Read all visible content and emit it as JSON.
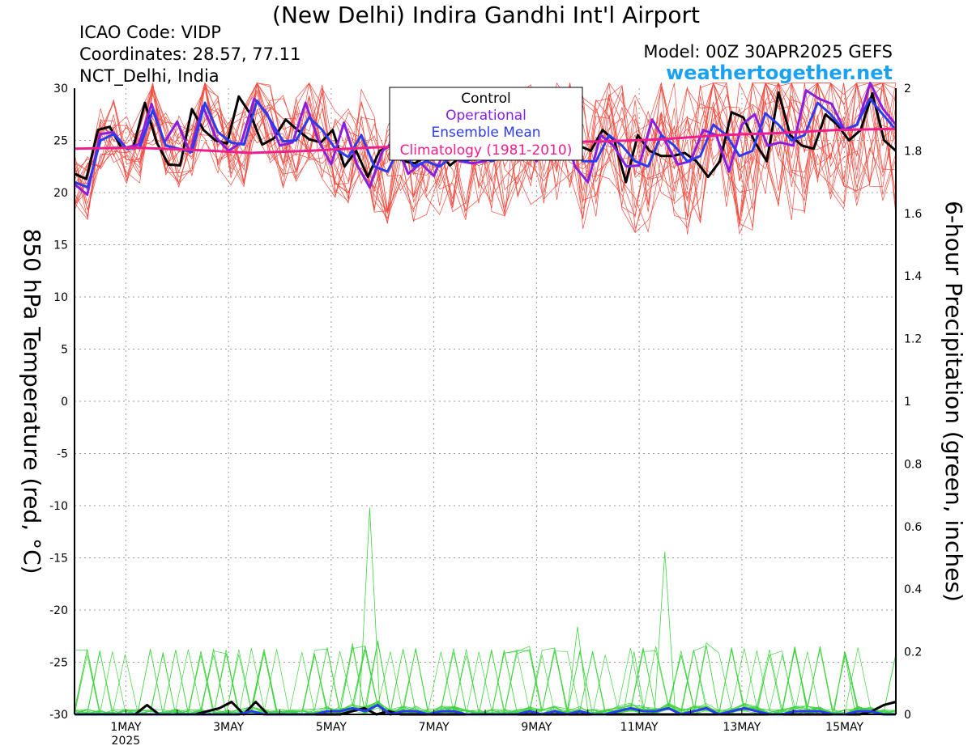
{
  "header": {
    "title": "(New Delhi) Indira Gandhi Int'l Airport",
    "icao": "ICAO Code: VIDP",
    "coordinates": "Coordinates: 28.57, 77.11",
    "region": "NCT_Delhi, India",
    "model": "Model: 00Z 30APR2025 GEFS",
    "site": "weathertogether.net"
  },
  "colors": {
    "control": "#000000",
    "operational": "#8a1ee0",
    "ensemble_mean": "#2b3cf0",
    "climatology": "#f01e8c",
    "members_temp": "#f24a3e",
    "members_precip": "#3fd43f",
    "site": "#1ba1f0"
  },
  "chart_data": {
    "type": "line",
    "xlabel": "",
    "ylabel": "850 hPa Temperature (red, °C)",
    "y2label": "6-hour Precipitation (green, inches)",
    "ylim": [
      -30,
      30
    ],
    "y2lim": [
      0,
      2
    ],
    "yticks": [
      30,
      25,
      20,
      15,
      10,
      5,
      0,
      -5,
      -10,
      -15,
      -20,
      -25,
      -30
    ],
    "y2ticks": [
      "2",
      "1.8",
      "1.6",
      "1.4",
      "1.2",
      "1",
      "0.8",
      "0.6",
      "0.4",
      "0.2",
      "0"
    ],
    "x_ticks": [
      {
        "label": "1MAY",
        "sub": "2025",
        "pos": 1
      },
      {
        "label": "3MAY",
        "pos": 3
      },
      {
        "label": "5MAY",
        "pos": 5
      },
      {
        "label": "7MAY",
        "pos": 7
      },
      {
        "label": "9MAY",
        "pos": 9
      },
      {
        "label": "11MAY",
        "pos": 11
      },
      {
        "label": "13MAY",
        "pos": 13
      },
      {
        "label": "15MAY",
        "pos": 15
      }
    ],
    "xlim": [
      0,
      16
    ],
    "legend": {
      "placement": "top-center",
      "entries": [
        "Control",
        "Operational",
        "Ensemble Mean",
        "Climatology (1981-2010)"
      ]
    },
    "grid": true,
    "series": [
      {
        "name": "Control",
        "axis": "temp",
        "values": [
          21.8,
          21.3,
          26.0,
          26.3,
          24.3,
          24.3,
          28.6,
          24.8,
          22.7,
          22.6,
          28.0,
          26.0,
          25.0,
          24.7,
          29.2,
          27.5,
          24.6,
          25.2,
          27.0,
          26.0,
          25.1,
          24.8,
          26.0,
          22.5,
          24.0,
          21.5,
          24.0,
          24.5,
          23.0,
          22.8,
          23.5,
          24.0,
          22.6,
          23.5,
          24.0,
          24.5,
          26.0,
          26.5,
          27.0,
          25.0,
          24.0,
          26.5,
          25.5,
          24.5,
          24.0,
          26.0,
          25.0,
          21.0,
          25.5,
          24.0,
          23.5,
          23.5,
          23.8,
          23.0,
          21.5,
          23.0,
          27.7,
          27.2,
          24.8,
          23.0,
          29.6,
          25.5,
          24.5,
          24.2,
          27.5,
          26.5,
          25.0,
          26.0,
          29.5,
          25.0,
          24.0
        ]
      },
      {
        "name": "Operational",
        "axis": "temp",
        "values": [
          20.8,
          19.8,
          25.6,
          25.8,
          24.3,
          24.6,
          28.5,
          24.8,
          26.8,
          23.8,
          28.3,
          25.3,
          24.0,
          24.8,
          29.0,
          27.6,
          24.5,
          24.8,
          28.6,
          25.0,
          22.7,
          26.7,
          22.7,
          20.5,
          24.0,
          25.0,
          21.8,
          22.8,
          21.6,
          24.5,
          23.0,
          22.8,
          23.0,
          24.0,
          25.0,
          24.5,
          23.0,
          26.0,
          26.5,
          22.5,
          21.0,
          25.5,
          24.5,
          22.5,
          22.6,
          27.0,
          25.0,
          22.7,
          23.0,
          26.0,
          25.5,
          22.0,
          26.5,
          27.5,
          24.5,
          24.8,
          24.5,
          29.8,
          29.0,
          28.5,
          26.0,
          26.5,
          30.5,
          28.0,
          26.5
        ]
      },
      {
        "name": "Ensemble Mean",
        "axis": "temp",
        "values": [
          21.0,
          20.5,
          25.0,
          25.6,
          24.2,
          24.3,
          27.9,
          24.5,
          24.2,
          23.9,
          28.6,
          25.8,
          24.8,
          24.6,
          28.8,
          27.0,
          24.9,
          25.0,
          27.2,
          26.0,
          24.2,
          23.4,
          25.5,
          22.5,
          22.0,
          24.5,
          22.5,
          23.0,
          22.5,
          23.5,
          23.0,
          23.5,
          23.0,
          23.5,
          24.0,
          24.5,
          24.5,
          25.0,
          25.5,
          23.0,
          23.0,
          25.5,
          24.5,
          23.0,
          22.5,
          25.5,
          24.5,
          23.0,
          23.5,
          26.5,
          25.5,
          23.5,
          24.0,
          27.6,
          26.5,
          25.0,
          25.5,
          28.6,
          27.5,
          26.0,
          26.5,
          29.0,
          27.5,
          26.0
        ]
      },
      {
        "name": "Climatology (1981-2010)",
        "axis": "temp",
        "values": [
          24.2,
          24.3,
          24.1,
          23.8,
          24.0,
          24.3,
          24.5,
          24.6,
          24.8,
          24.9,
          25.1,
          25.5,
          25.7,
          26.0,
          26.1
        ]
      },
      {
        "name": "Control",
        "axis": "precip",
        "values": [
          0,
          0,
          0,
          0,
          0,
          0,
          0.03,
          0,
          0,
          0,
          0,
          0.01,
          0.02,
          0.04,
          0,
          0.04,
          0,
          0,
          0,
          0,
          0,
          0,
          0,
          0.01,
          0.02,
          0,
          0.01,
          0,
          0,
          0,
          0,
          0,
          0,
          0,
          0,
          0,
          0,
          0,
          0,
          0,
          0,
          0,
          0,
          0,
          0,
          0,
          0,
          0,
          0,
          0,
          0,
          0,
          0,
          0,
          0,
          0,
          0,
          0,
          0,
          0,
          0,
          0,
          0,
          0,
          0,
          0,
          0.01,
          0.03,
          0.04
        ]
      },
      {
        "name": "Ensemble Mean",
        "axis": "precip",
        "values": [
          0,
          0,
          0,
          0,
          0,
          0,
          0,
          0,
          0,
          0,
          0,
          0,
          0,
          0,
          0.01,
          0,
          0,
          0,
          0,
          0,
          0.01,
          0.01,
          0.02,
          0.01,
          0.03,
          0,
          0.01,
          0.01,
          0,
          0.01,
          0.01,
          0,
          0,
          0,
          0,
          0,
          0.01,
          0,
          0.01,
          0,
          0.01,
          0,
          0,
          0.01,
          0.02,
          0.01,
          0.01,
          0.02,
          0,
          0.01,
          0.02,
          0,
          0.01,
          0.02,
          0.01,
          0,
          0,
          0.01,
          0.01,
          0.01,
          0,
          0,
          0.01,
          0.01,
          0,
          0
        ]
      }
    ],
    "members_note": ""
  }
}
